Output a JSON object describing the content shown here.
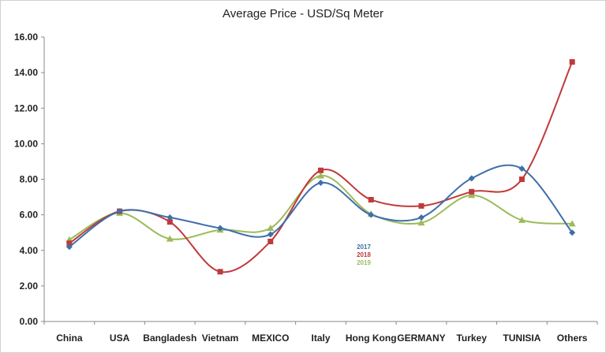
{
  "chart_data": {
    "type": "line",
    "title": "Average Price - USD/Sq Meter",
    "xlabel": "",
    "ylabel": "",
    "categories": [
      "China",
      "USA",
      "Bangladesh",
      "Vietnam",
      "MEXICO",
      "Italy",
      "Hong Kong",
      "GERMANY",
      "Turkey",
      "TUNISIA",
      "Others"
    ],
    "ylim": [
      0,
      16
    ],
    "yticks": [
      "0.00",
      "2.00",
      "4.00",
      "6.00",
      "8.00",
      "10.00",
      "12.00",
      "14.00",
      "16.00"
    ],
    "grid": false,
    "legend_position": "center",
    "series": [
      {
        "name": "2017",
        "color": "#3f6faa",
        "marker": "diamond",
        "values": [
          4.2,
          6.2,
          5.85,
          5.25,
          4.9,
          7.8,
          6.0,
          5.85,
          8.05,
          8.6,
          5.0
        ]
      },
      {
        "name": "2018",
        "color": "#c0393b",
        "marker": "square",
        "values": [
          4.4,
          6.2,
          5.6,
          2.8,
          4.5,
          8.5,
          6.85,
          6.5,
          7.3,
          8.0,
          14.6
        ]
      },
      {
        "name": "2019",
        "color": "#9bbb59",
        "marker": "triangle",
        "values": [
          4.6,
          6.1,
          4.65,
          5.15,
          5.25,
          8.2,
          6.05,
          5.55,
          7.1,
          5.7,
          5.5
        ]
      }
    ]
  }
}
